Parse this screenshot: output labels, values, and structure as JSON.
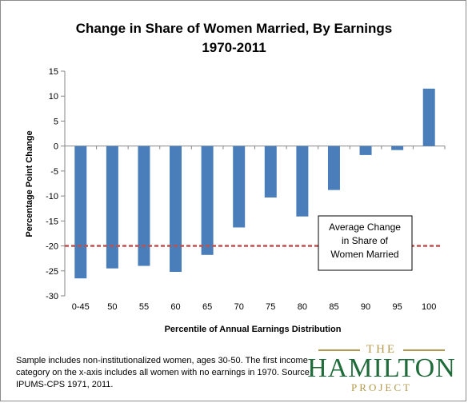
{
  "chart_data": {
    "type": "bar",
    "title": [
      "Change in Share of Women Married, By Earnings",
      "1970-2011"
    ],
    "xlabel": "Percentile of Annual Earnings Distribution",
    "ylabel": "Percentage Point Change",
    "categories": [
      "0-45",
      "50",
      "55",
      "60",
      "65",
      "70",
      "75",
      "80",
      "85",
      "90",
      "95",
      "100"
    ],
    "values": [
      -26.5,
      -24.5,
      -24.0,
      -25.2,
      -21.8,
      -16.3,
      -10.3,
      -14.1,
      -8.8,
      -1.8,
      -0.8,
      11.5
    ],
    "ylim": [
      -30,
      15
    ],
    "yticks": [
      15,
      10,
      5,
      0,
      -5,
      -10,
      -15,
      -20,
      -25,
      -30
    ],
    "grid": false,
    "bar_color": "#4a7ebb",
    "reference_line": {
      "value": -20,
      "color": "#c0504d",
      "style": "dashed"
    },
    "annotation": [
      "Average Change",
      "in Share of",
      "Women Married"
    ]
  },
  "footnote": "Sample includes non-institutionalized women, ages 30-50. The first income category on the x-axis includes all women with no earnings in 1970. Source: IPUMS-CPS 1971, 2011.",
  "logo": {
    "the": "THE",
    "name": "HAMILTON",
    "project": "PROJECT"
  }
}
